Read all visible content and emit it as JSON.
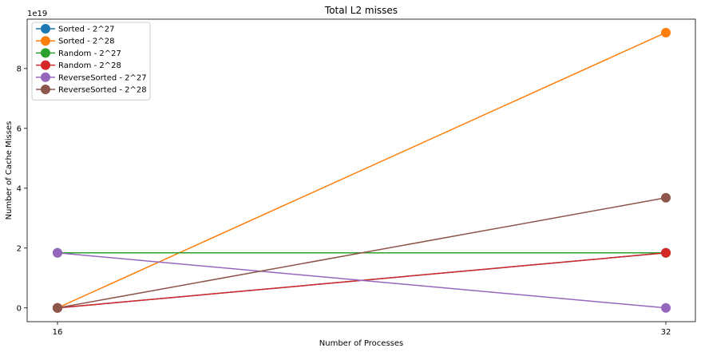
{
  "chart_data": {
    "type": "line",
    "title": "Total L2 misses",
    "xlabel": "Number of Processes",
    "ylabel": "Number of Cache Misses",
    "y_offset_label": "1e19",
    "x": [
      16,
      32
    ],
    "x_tick_labels": [
      "16",
      "32"
    ],
    "y_ticks": [
      0,
      2,
      4,
      6,
      8
    ],
    "y_tick_labels": [
      "0",
      "2",
      "4",
      "6",
      "8"
    ],
    "ylim": [
      -0.46,
      9.65
    ],
    "y_unit_scale": "1e19",
    "legend_position": "top-left",
    "grid": false,
    "series": [
      {
        "name": "Sorted - 2^27",
        "color": "#1f77b4",
        "values": [
          0.0,
          1.84
        ]
      },
      {
        "name": "Sorted - 2^28",
        "color": "#ff7f0e",
        "values": [
          0.0,
          9.2
        ]
      },
      {
        "name": "Random - 2^27",
        "color": "#2ca02c",
        "values": [
          1.84,
          1.84
        ]
      },
      {
        "name": "Random - 2^28",
        "color": "#d62728",
        "values": [
          0.0,
          1.84
        ]
      },
      {
        "name": "ReverseSorted - 2^27",
        "color": "#9467bd",
        "values": [
          1.84,
          0.0
        ]
      },
      {
        "name": "ReverseSorted - 2^28",
        "color": "#8c564b",
        "values": [
          0.0,
          3.68
        ]
      }
    ]
  }
}
